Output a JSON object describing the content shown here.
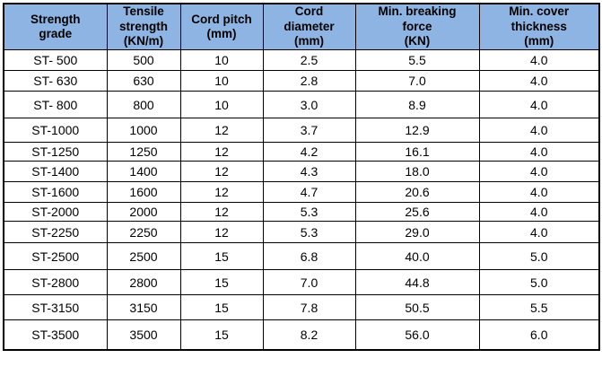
{
  "colors": {
    "header_bg": "#8DB4E2",
    "cell_bg": "#FFFFFF",
    "border": "#000000",
    "text": "#000000"
  },
  "table": {
    "columns": [
      {
        "key": "strength-grade",
        "label": "Strength\ngrade"
      },
      {
        "key": "tensile-strength",
        "label": "Tensile\nstrength\n(KN/m)"
      },
      {
        "key": "cord-pitch",
        "label": "Cord pitch\n(mm)"
      },
      {
        "key": "cord-diameter",
        "label": "Cord\ndiameter\n(mm)"
      },
      {
        "key": "min-breaking-force",
        "label": "Min. breaking\nforce\n(KN)"
      },
      {
        "key": "min-cover-thickness",
        "label": "Min. cover\nthickness\n(mm)"
      }
    ],
    "rows": [
      [
        "ST- 500",
        "500",
        "10",
        "2.5",
        "5.5",
        "4.0"
      ],
      [
        "ST- 630",
        "630",
        "10",
        "2.8",
        "7.0",
        "4.0"
      ],
      [
        "ST- 800",
        "800",
        "10",
        "3.0",
        "8.9",
        "4.0"
      ],
      [
        "ST-1000",
        "1000",
        "12",
        "3.7",
        "12.9",
        "4.0"
      ],
      [
        "ST-1250",
        "1250",
        "12",
        "4.2",
        "16.1",
        "4.0"
      ],
      [
        "ST-1400",
        "1400",
        "12",
        "4.3",
        "18.0",
        "4.0"
      ],
      [
        "ST-1600",
        "1600",
        "12",
        "4.7",
        "20.6",
        "4.0"
      ],
      [
        "ST-2000",
        "2000",
        "12",
        "5.3",
        "25.6",
        "4.0"
      ],
      [
        "ST-2250",
        "2250",
        "12",
        "5.3",
        "29.0",
        "4.0"
      ],
      [
        "ST-2500",
        "2500",
        "15",
        "6.8",
        "40.0",
        "5.0"
      ],
      [
        "ST-2800",
        "2800",
        "15",
        "7.0",
        "44.8",
        "5.0"
      ],
      [
        "ST-3150",
        "3150",
        "15",
        "7.8",
        "50.5",
        "5.5"
      ],
      [
        "ST-3500",
        "3500",
        "15",
        "8.2",
        "56.0",
        "6.0"
      ]
    ]
  }
}
